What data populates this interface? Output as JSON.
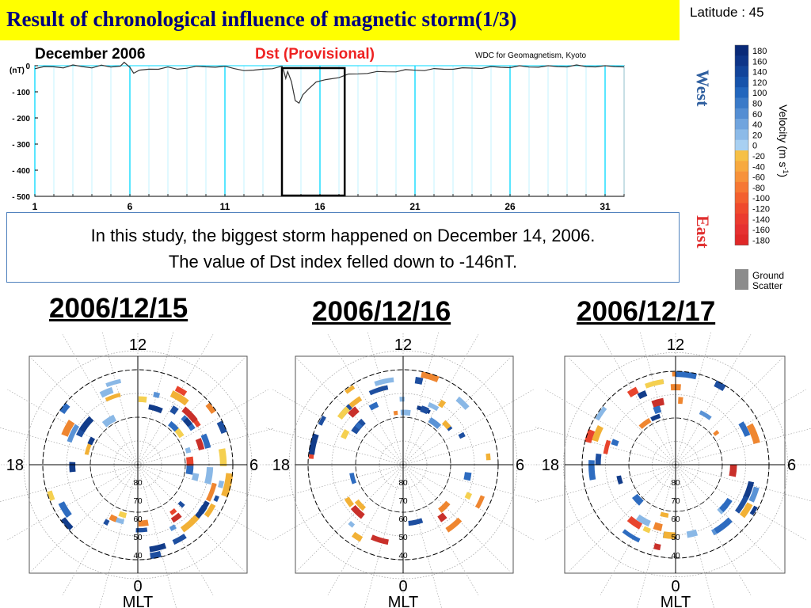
{
  "title": "Result of chronological influence of magnetic storm(1/3)",
  "dst_plot": {
    "month": "December  2006",
    "heading": "Dst (Provisional)",
    "credit": "WDC for Geomagnetism, Kyoto",
    "unit": "(nT)",
    "y_ticks": [
      "0",
      "- 100",
      "- 200",
      "- 300",
      "- 400",
      "- 500"
    ],
    "x_ticks": [
      "1",
      "6",
      "11",
      "16",
      "21",
      "26",
      "31"
    ]
  },
  "caption": {
    "line1": "In this study, the biggest storm happened on December 14, 2006.",
    "line2": "The value of Dst index felled down to -146nT."
  },
  "dates": [
    "2006/12/15",
    "2006/12/16",
    "2006/12/17"
  ],
  "colorbar": {
    "latitude": "Latitude : 45",
    "west": "West",
    "east": "East",
    "axis_label": "Velocity (m s",
    "axis_label_sup": "-1",
    "axis_label_end": ")",
    "ticks": [
      "180",
      "160",
      "140",
      "120",
      "100",
      "80",
      "60",
      "40",
      "20",
      "0",
      "-20",
      "-40",
      "-60",
      "-80",
      "-100",
      "-120",
      "-140",
      "-160",
      "-180"
    ],
    "ground_scatter_1": "Ground",
    "ground_scatter_2": "Scatter"
  },
  "polar_labels": {
    "top": "12",
    "left": "18",
    "right": "6",
    "bottom": "0",
    "axis": "MLT",
    "rings": [
      "80",
      "70",
      "60",
      "50",
      "40"
    ]
  },
  "chart_data": {
    "type": "line",
    "title": "Dst (Provisional)",
    "subtitle": "December  2006",
    "xlabel": "",
    "ylabel": "(nT)",
    "x_ticks": [
      1,
      6,
      11,
      16,
      21,
      26,
      31
    ],
    "ylim": [
      -500,
      0
    ],
    "x_range": [
      1,
      32
    ],
    "highlight_box_days": [
      14,
      17.3
    ],
    "min_value": -146,
    "series": [
      {
        "values": [
          [
            1,
            -8
          ],
          [
            1.5,
            -6
          ],
          [
            2,
            -3
          ],
          [
            2.5,
            -5
          ],
          [
            3,
            0
          ],
          [
            3.5,
            -2
          ],
          [
            4,
            -5
          ],
          [
            4.5,
            -1
          ],
          [
            5,
            -4
          ],
          [
            5.5,
            2
          ],
          [
            5.7,
            10
          ],
          [
            6,
            -5
          ],
          [
            6.2,
            -25
          ],
          [
            6.5,
            -20
          ],
          [
            7,
            -12
          ],
          [
            7.5,
            -10
          ],
          [
            8,
            -8
          ],
          [
            8.5,
            -12
          ],
          [
            9,
            -6
          ],
          [
            9.5,
            -5
          ],
          [
            10,
            -3
          ],
          [
            10.5,
            -2
          ],
          [
            11,
            -5
          ],
          [
            11.5,
            -10
          ],
          [
            12,
            -15
          ],
          [
            12.5,
            -20
          ],
          [
            13,
            -12
          ],
          [
            13.5,
            -8
          ],
          [
            14,
            -5
          ],
          [
            14.1,
            -20
          ],
          [
            14.2,
            -45
          ],
          [
            14.3,
            -25
          ],
          [
            14.5,
            -60
          ],
          [
            14.7,
            -130
          ],
          [
            14.9,
            -146
          ],
          [
            15.1,
            -110
          ],
          [
            15.4,
            -85
          ],
          [
            15.8,
            -65
          ],
          [
            16.3,
            -52
          ],
          [
            17,
            -42
          ],
          [
            17.5,
            -35
          ],
          [
            18,
            -30
          ],
          [
            18.5,
            -26
          ],
          [
            19,
            -25
          ],
          [
            19.5,
            -22
          ],
          [
            20,
            -20
          ],
          [
            20.5,
            -18
          ],
          [
            21,
            -16
          ],
          [
            21.5,
            -15
          ],
          [
            22,
            -14
          ],
          [
            22.5,
            -12
          ],
          [
            23,
            -10
          ],
          [
            23.5,
            -11
          ],
          [
            24,
            -8
          ],
          [
            24.5,
            -7
          ],
          [
            25,
            -6
          ],
          [
            25.5,
            -5
          ],
          [
            26,
            -4
          ],
          [
            26.5,
            -3
          ],
          [
            27,
            -4
          ],
          [
            27.5,
            -2
          ],
          [
            28,
            -3
          ],
          [
            28.5,
            -2
          ],
          [
            29,
            -1
          ],
          [
            29.5,
            0
          ],
          [
            30,
            -2
          ],
          [
            30.5,
            -1
          ],
          [
            31,
            -3
          ],
          [
            31.5,
            -2
          ],
          [
            32,
            -1
          ]
        ]
      }
    ]
  }
}
